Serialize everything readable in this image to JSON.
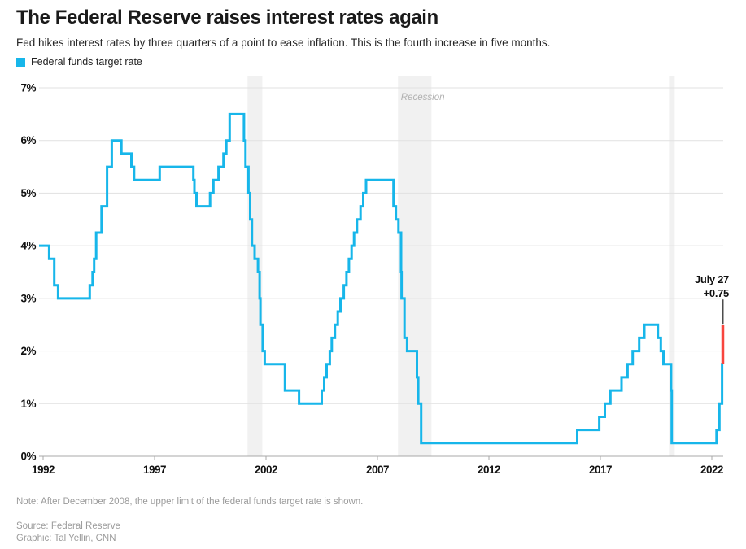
{
  "header": {
    "title": "The Federal Reserve raises interest rates again",
    "subtitle": "Fed hikes interest rates by three quarters of a point to ease inflation. This is the fourth increase in five months.",
    "legend_label": "Federal funds target rate"
  },
  "annotation": {
    "line1": "July 27",
    "line2": "+0.75"
  },
  "recession_label": "Recession",
  "footer": {
    "note": "Note: After December 2008, the upper limit of the federal funds target rate is shown.",
    "source": "Source: Federal Reserve",
    "credit": "Graphic: Tal Yellin, CNN"
  },
  "colors": {
    "line": "#17b6ea",
    "highlight": "#f8453e",
    "pointer": "#4d4d4d",
    "recession_band": "#f1f1f1",
    "recession_text": "#b1b1b1",
    "grid": "#e1e1e1",
    "axis": "#a8a8a8",
    "text_dark": "#111111"
  },
  "chart_data": {
    "type": "line",
    "subtype": "step",
    "series_name": "Federal funds target rate",
    "y_tick_labels": [
      "0%",
      "1%",
      "2%",
      "3%",
      "4%",
      "5%",
      "6%",
      "7%"
    ],
    "y_tick_values": [
      0,
      1,
      2,
      3,
      4,
      5,
      6,
      7
    ],
    "x_tick_labels": [
      "1992",
      "1997",
      "2002",
      "2007",
      "2012",
      "2017",
      "2022"
    ],
    "x_tick_values": [
      1992,
      1997,
      2002,
      2007,
      2012,
      2017,
      2022
    ],
    "xlim": [
      1992,
      2022.75
    ],
    "ylim": [
      0,
      7
    ],
    "grid": true,
    "step_points": [
      [
        1992.0,
        4.0
      ],
      [
        1992.27,
        3.75
      ],
      [
        1992.5,
        3.25
      ],
      [
        1992.67,
        3.0
      ],
      [
        1994.09,
        3.25
      ],
      [
        1994.22,
        3.5
      ],
      [
        1994.29,
        3.75
      ],
      [
        1994.38,
        4.25
      ],
      [
        1994.62,
        4.75
      ],
      [
        1994.87,
        5.5
      ],
      [
        1995.08,
        6.0
      ],
      [
        1995.51,
        5.75
      ],
      [
        1995.96,
        5.5
      ],
      [
        1996.08,
        5.25
      ],
      [
        1997.23,
        5.5
      ],
      [
        1998.74,
        5.25
      ],
      [
        1998.79,
        5.0
      ],
      [
        1998.88,
        4.75
      ],
      [
        1999.49,
        5.0
      ],
      [
        1999.64,
        5.25
      ],
      [
        1999.87,
        5.5
      ],
      [
        2000.09,
        5.75
      ],
      [
        2000.22,
        6.0
      ],
      [
        2000.37,
        6.5
      ],
      [
        2001.01,
        6.0
      ],
      [
        2001.08,
        5.5
      ],
      [
        2001.21,
        5.0
      ],
      [
        2001.29,
        4.5
      ],
      [
        2001.37,
        4.0
      ],
      [
        2001.49,
        3.75
      ],
      [
        2001.64,
        3.5
      ],
      [
        2001.71,
        3.0
      ],
      [
        2001.75,
        2.5
      ],
      [
        2001.85,
        2.0
      ],
      [
        2001.94,
        1.75
      ],
      [
        2002.85,
        1.25
      ],
      [
        2003.48,
        1.0
      ],
      [
        2004.5,
        1.25
      ],
      [
        2004.61,
        1.5
      ],
      [
        2004.72,
        1.75
      ],
      [
        2004.86,
        2.0
      ],
      [
        2004.95,
        2.25
      ],
      [
        2005.09,
        2.5
      ],
      [
        2005.22,
        2.75
      ],
      [
        2005.34,
        3.0
      ],
      [
        2005.49,
        3.25
      ],
      [
        2005.61,
        3.5
      ],
      [
        2005.72,
        3.75
      ],
      [
        2005.84,
        4.0
      ],
      [
        2005.95,
        4.25
      ],
      [
        2006.08,
        4.5
      ],
      [
        2006.24,
        4.75
      ],
      [
        2006.36,
        5.0
      ],
      [
        2006.49,
        5.25
      ],
      [
        2007.72,
        4.75
      ],
      [
        2007.83,
        4.5
      ],
      [
        2007.94,
        4.25
      ],
      [
        2008.06,
        3.5
      ],
      [
        2008.08,
        3.0
      ],
      [
        2008.21,
        2.25
      ],
      [
        2008.33,
        2.0
      ],
      [
        2008.77,
        1.5
      ],
      [
        2008.83,
        1.0
      ],
      [
        2008.96,
        0.25
      ],
      [
        2015.96,
        0.5
      ],
      [
        2016.95,
        0.75
      ],
      [
        2017.2,
        1.0
      ],
      [
        2017.45,
        1.25
      ],
      [
        2017.95,
        1.5
      ],
      [
        2018.22,
        1.75
      ],
      [
        2018.45,
        2.0
      ],
      [
        2018.74,
        2.25
      ],
      [
        2018.97,
        2.5
      ],
      [
        2019.58,
        2.25
      ],
      [
        2019.71,
        2.0
      ],
      [
        2019.83,
        1.75
      ],
      [
        2020.17,
        1.25
      ],
      [
        2020.2,
        0.25
      ],
      [
        2022.21,
        0.5
      ],
      [
        2022.34,
        1.0
      ],
      [
        2022.46,
        1.75
      ]
    ],
    "highlight_segment": {
      "x": 2022.57,
      "from": 1.75,
      "to": 2.5,
      "change": "+0.75",
      "date": "July 27"
    },
    "recessions": [
      {
        "start": 2001.17,
        "end": 2001.83
      },
      {
        "start": 2007.92,
        "end": 2009.42
      },
      {
        "start": 2020.08,
        "end": 2020.33
      }
    ],
    "recession_label_position": {
      "x": 2008.05,
      "y_pct": 6.77
    }
  }
}
